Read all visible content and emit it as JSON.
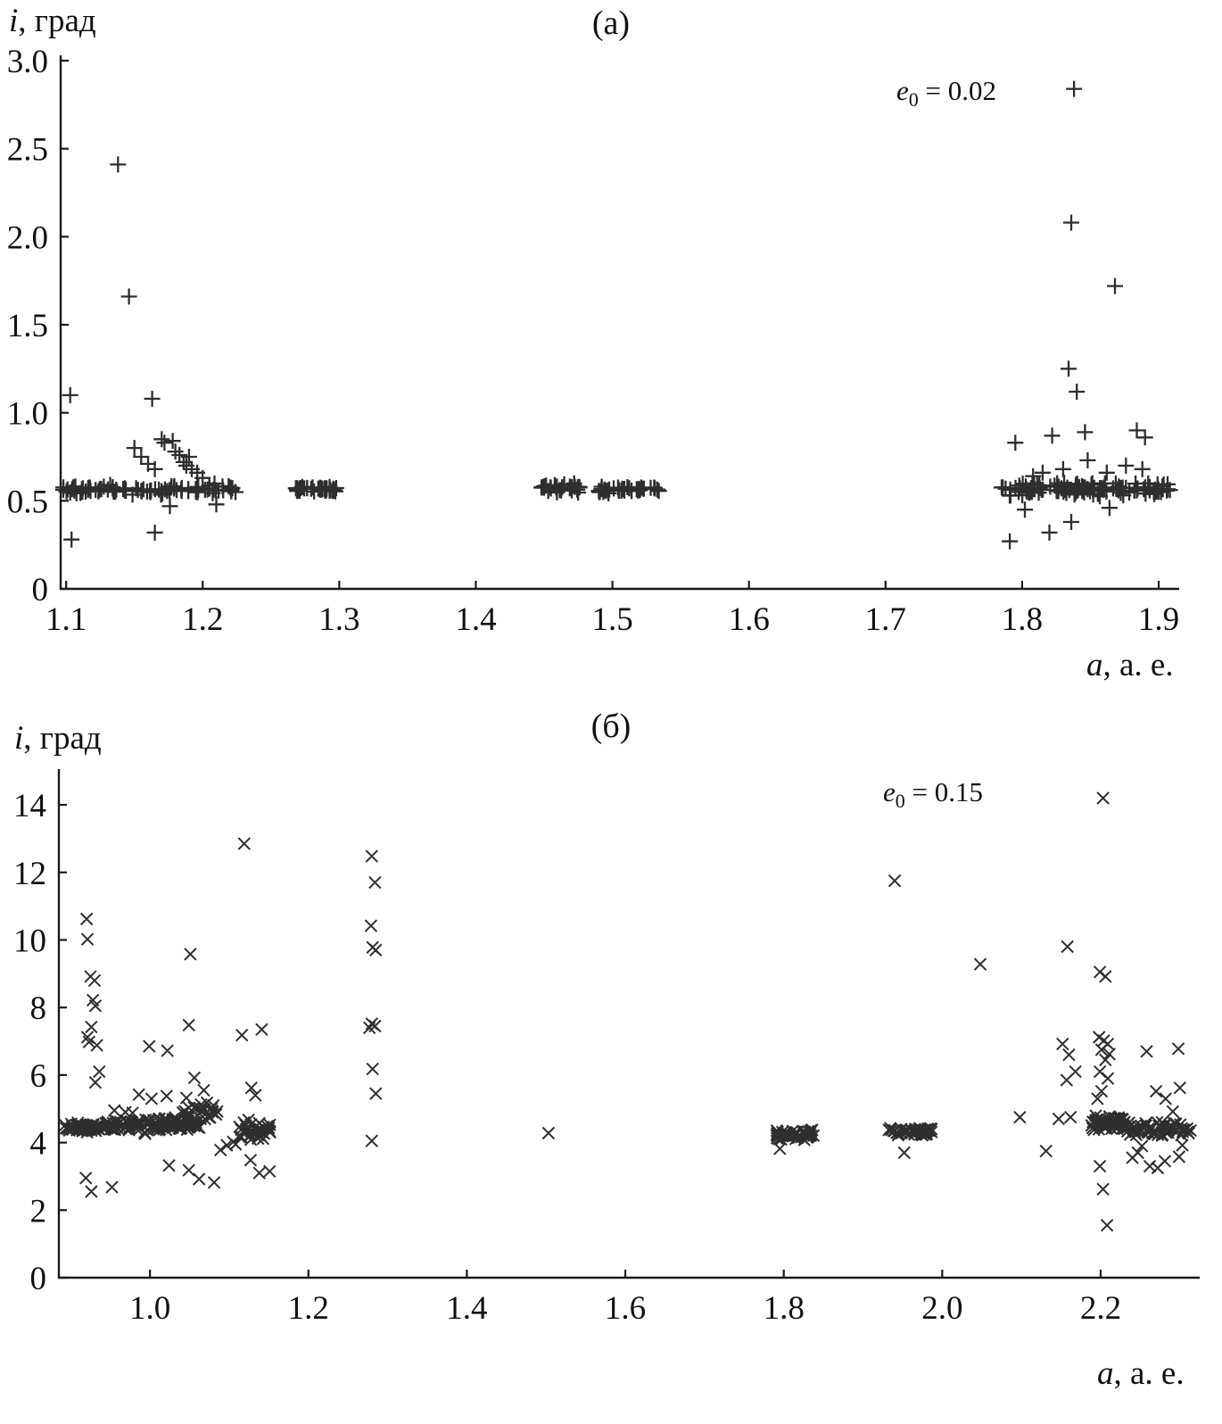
{
  "figure": {
    "background": "#ffffff",
    "marker_color": "#2e2e2e",
    "axis_color": "#1a1a1a"
  },
  "chart_data": [
    {
      "type": "scatter",
      "panel_label": "(а)",
      "marker": "plus",
      "ylabel": {
        "var": "i",
        "text": ", град"
      },
      "xlabel": {
        "var": "a",
        "text": ", а. е."
      },
      "annotation": {
        "var": "e",
        "sub": "0",
        "text": " = 0.02"
      },
      "xlim": [
        1.096,
        1.915
      ],
      "ylim": [
        0,
        3.0
      ],
      "xticks": [
        1.1,
        1.2,
        1.3,
        1.4,
        1.5,
        1.6,
        1.7,
        1.8,
        1.9
      ],
      "xtick_labels": [
        "1.1",
        "1.2",
        "1.3",
        "1.4",
        "1.5",
        "1.6",
        "1.7",
        "1.8",
        "1.9"
      ],
      "yticks": [
        0,
        0.5,
        1.0,
        1.5,
        2.0,
        2.5,
        3.0
      ],
      "ytick_labels": [
        "0",
        "0.5",
        "1.0",
        "1.5",
        "2.0",
        "2.5",
        "3.0"
      ],
      "band_clusters": [
        {
          "x0": 1.097,
          "x1": 1.225,
          "n": 95,
          "y": 0.565,
          "ys": 0.02
        },
        {
          "x0": 1.268,
          "x1": 1.298,
          "n": 42,
          "y": 0.565,
          "ys": 0.013
        },
        {
          "x0": 1.448,
          "x1": 1.477,
          "n": 30,
          "y": 0.575,
          "ys": 0.018
        },
        {
          "x0": 1.49,
          "x1": 1.535,
          "n": 38,
          "y": 0.565,
          "ys": 0.014
        },
        {
          "x0": 1.785,
          "x1": 1.912,
          "n": 120,
          "y": 0.565,
          "ys": 0.028
        }
      ],
      "points": [
        [
          1.103,
          1.1
        ],
        [
          1.104,
          0.28
        ],
        [
          1.138,
          2.41
        ],
        [
          1.146,
          1.66
        ],
        [
          1.163,
          1.08
        ],
        [
          1.165,
          0.32
        ],
        [
          1.176,
          0.47
        ],
        [
          1.15,
          0.8
        ],
        [
          1.155,
          0.75
        ],
        [
          1.16,
          0.71
        ],
        [
          1.165,
          0.68
        ],
        [
          1.17,
          0.85
        ],
        [
          1.172,
          0.83
        ],
        [
          1.178,
          0.84
        ],
        [
          1.18,
          0.78
        ],
        [
          1.183,
          0.76
        ],
        [
          1.186,
          0.72
        ],
        [
          1.188,
          0.7
        ],
        [
          1.19,
          0.75
        ],
        [
          1.192,
          0.68
        ],
        [
          1.196,
          0.66
        ],
        [
          1.2,
          0.63
        ],
        [
          1.205,
          0.57
        ],
        [
          1.21,
          0.48
        ],
        [
          1.215,
          0.56
        ],
        [
          1.838,
          2.84
        ],
        [
          1.836,
          2.08
        ],
        [
          1.868,
          1.72
        ],
        [
          1.834,
          1.25
        ],
        [
          1.84,
          1.12
        ],
        [
          1.795,
          0.83
        ],
        [
          1.822,
          0.87
        ],
        [
          1.846,
          0.89
        ],
        [
          1.884,
          0.9
        ],
        [
          1.89,
          0.86
        ],
        [
          1.83,
          0.68
        ],
        [
          1.848,
          0.73
        ],
        [
          1.862,
          0.66
        ],
        [
          1.876,
          0.7
        ],
        [
          1.888,
          0.68
        ],
        [
          1.808,
          0.64
        ],
        [
          1.815,
          0.66
        ],
        [
          1.791,
          0.27
        ],
        [
          1.82,
          0.32
        ],
        [
          1.836,
          0.38
        ],
        [
          1.802,
          0.45
        ],
        [
          1.864,
          0.46
        ]
      ]
    },
    {
      "type": "scatter",
      "panel_label": "(б)",
      "marker": "cross",
      "ylabel": {
        "var": "i",
        "text": ", град"
      },
      "xlabel": {
        "var": "a",
        "text": ", а. е."
      },
      "annotation": {
        "var": "e",
        "sub": "0",
        "text": " = 0.15"
      },
      "xlim": [
        0.885,
        2.325
      ],
      "ylim": [
        0,
        14.9
      ],
      "xticks": [
        1.0,
        1.2,
        1.4,
        1.6,
        1.8,
        2.0,
        2.2
      ],
      "xtick_labels": [
        "1.0",
        "1.2",
        "1.4",
        "1.6",
        "1.8",
        "2.0",
        "2.2"
      ],
      "yticks": [
        0,
        2,
        4,
        6,
        8,
        10,
        12,
        14
      ],
      "ytick_labels": [
        "0",
        "2",
        "4",
        "6",
        "8",
        "10",
        "12",
        "14"
      ],
      "band_clusters": [
        {
          "x0": 0.893,
          "x1": 0.938,
          "n": 55,
          "y": 4.45,
          "ys": 0.1
        },
        {
          "x0": 0.94,
          "x1": 1.065,
          "n": 110,
          "y": 4.52,
          "ys": 0.16
        },
        {
          "x0": 1.04,
          "x1": 1.085,
          "n": 25,
          "y": 4.85,
          "ys": 0.3
        },
        {
          "x0": 1.112,
          "x1": 1.152,
          "n": 40,
          "y": 4.35,
          "ys": 0.22
        },
        {
          "x0": 1.79,
          "x1": 1.838,
          "n": 50,
          "y": 4.22,
          "ys": 0.14
        },
        {
          "x0": 1.93,
          "x1": 1.988,
          "n": 50,
          "y": 4.35,
          "ys": 0.1
        },
        {
          "x0": 2.188,
          "x1": 2.23,
          "n": 55,
          "y": 4.55,
          "ys": 0.18
        },
        {
          "x0": 2.232,
          "x1": 2.315,
          "n": 60,
          "y": 4.38,
          "ys": 0.2
        }
      ],
      "points": [
        [
          0.92,
          10.62
        ],
        [
          0.921,
          10.02
        ],
        [
          0.925,
          8.92
        ],
        [
          0.93,
          8.8
        ],
        [
          0.928,
          8.22
        ],
        [
          0.931,
          8.05
        ],
        [
          0.926,
          7.42
        ],
        [
          0.921,
          7.12
        ],
        [
          0.923,
          6.98
        ],
        [
          0.933,
          6.88
        ],
        [
          0.936,
          6.1
        ],
        [
          0.931,
          5.78
        ],
        [
          0.919,
          2.95
        ],
        [
          0.926,
          2.55
        ],
        [
          0.952,
          2.68
        ],
        [
          0.999,
          6.85
        ],
        [
          1.022,
          6.72
        ],
        [
          1.051,
          9.58
        ],
        [
          1.049,
          7.48
        ],
        [
          1.056,
          5.92
        ],
        [
          0.986,
          5.42
        ],
        [
          1.002,
          5.3
        ],
        [
          1.021,
          5.38
        ],
        [
          1.046,
          5.32
        ],
        [
          1.068,
          5.55
        ],
        [
          1.072,
          5.18
        ],
        [
          1.078,
          5.02
        ],
        [
          1.024,
          3.32
        ],
        [
          1.049,
          3.18
        ],
        [
          1.062,
          2.92
        ],
        [
          1.081,
          2.82
        ],
        [
          1.089,
          3.78
        ],
        [
          1.097,
          3.92
        ],
        [
          1.105,
          4.02
        ],
        [
          0.955,
          4.95
        ],
        [
          0.969,
          4.9
        ],
        [
          0.978,
          4.88
        ],
        [
          1.119,
          12.85
        ],
        [
          1.116,
          7.18
        ],
        [
          1.141,
          7.35
        ],
        [
          1.128,
          5.62
        ],
        [
          1.133,
          5.4
        ],
        [
          1.127,
          3.48
        ],
        [
          1.138,
          3.1
        ],
        [
          1.151,
          3.15
        ],
        [
          1.108,
          3.95
        ],
        [
          1.28,
          12.48
        ],
        [
          1.284,
          11.7
        ],
        [
          1.279,
          10.42
        ],
        [
          1.281,
          9.78
        ],
        [
          1.285,
          9.7
        ],
        [
          1.28,
          7.52
        ],
        [
          1.284,
          7.45
        ],
        [
          1.277,
          7.4
        ],
        [
          1.281,
          6.18
        ],
        [
          1.285,
          5.45
        ],
        [
          1.28,
          4.05
        ],
        [
          1.503,
          4.28
        ],
        [
          1.795,
          3.82
        ],
        [
          1.94,
          11.75
        ],
        [
          1.952,
          3.7
        ],
        [
          2.048,
          9.28
        ],
        [
          2.098,
          4.75
        ],
        [
          2.131,
          3.75
        ],
        [
          2.158,
          9.8
        ],
        [
          2.152,
          6.92
        ],
        [
          2.16,
          6.6
        ],
        [
          2.168,
          6.1
        ],
        [
          2.157,
          5.85
        ],
        [
          2.162,
          4.75
        ],
        [
          2.147,
          4.7
        ],
        [
          2.203,
          14.2
        ],
        [
          2.199,
          9.05
        ],
        [
          2.206,
          8.92
        ],
        [
          2.198,
          7.12
        ],
        [
          2.204,
          7.02
        ],
        [
          2.209,
          6.92
        ],
        [
          2.201,
          6.75
        ],
        [
          2.211,
          6.62
        ],
        [
          2.206,
          6.45
        ],
        [
          2.199,
          6.1
        ],
        [
          2.209,
          5.9
        ],
        [
          2.201,
          5.52
        ],
        [
          2.196,
          5.3
        ],
        [
          2.199,
          3.3
        ],
        [
          2.203,
          2.62
        ],
        [
          2.208,
          1.55
        ],
        [
          2.258,
          6.7
        ],
        [
          2.298,
          6.78
        ],
        [
          2.27,
          5.52
        ],
        [
          2.282,
          5.3
        ],
        [
          2.3,
          5.62
        ],
        [
          2.291,
          4.92
        ],
        [
          2.252,
          3.9
        ],
        [
          2.262,
          3.3
        ],
        [
          2.272,
          3.25
        ],
        [
          2.281,
          3.45
        ],
        [
          2.299,
          3.58
        ],
        [
          2.303,
          3.92
        ],
        [
          2.24,
          3.55
        ],
        [
          2.247,
          3.7
        ]
      ]
    }
  ]
}
